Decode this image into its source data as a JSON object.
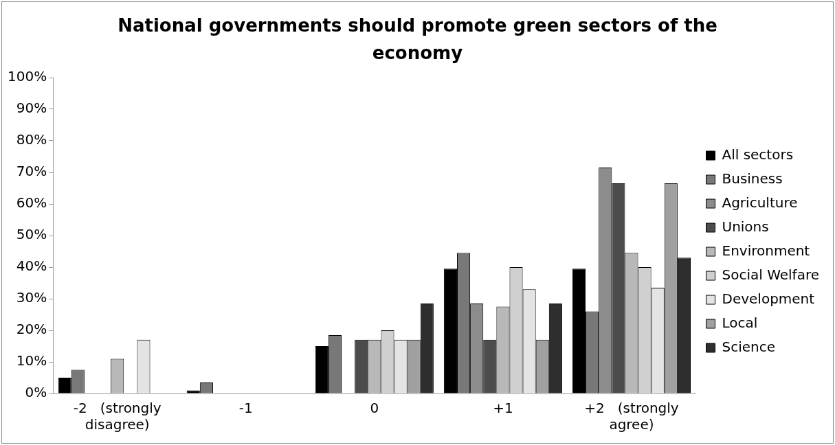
{
  "chart_data": {
    "type": "bar",
    "title": "National governments should promote green sectors of the economy",
    "categories": [
      "-2   (strongly disagree)",
      "-1",
      "0",
      "+1",
      "+2   (strongly agree)"
    ],
    "series": [
      {
        "name": "All sectors",
        "color": "#000000",
        "values": [
          5,
          1,
          15,
          39.5,
          39.5
        ]
      },
      {
        "name": "Business",
        "color": "#787878",
        "values": [
          7.5,
          3.5,
          18.5,
          44.5,
          26
        ]
      },
      {
        "name": "Agriculture",
        "color": "#8c8c8c",
        "values": [
          0,
          0,
          0,
          28.5,
          71.5
        ]
      },
      {
        "name": "Unions",
        "color": "#4c4c4c",
        "values": [
          0,
          0,
          17,
          17,
          66.5
        ]
      },
      {
        "name": "Environment",
        "color": "#b8b8b8",
        "values": [
          11,
          0,
          17,
          27.5,
          44.5
        ]
      },
      {
        "name": "Social Welfare",
        "color": "#d0d0d0",
        "values": [
          0,
          0,
          20,
          40,
          40
        ]
      },
      {
        "name": "Development",
        "color": "#e4e4e4",
        "values": [
          17,
          0,
          17,
          33,
          33.5
        ]
      },
      {
        "name": "Local",
        "color": "#a0a0a0",
        "values": [
          0,
          0,
          17,
          17,
          66.5
        ]
      },
      {
        "name": "Science",
        "color": "#2e2e2e",
        "values": [
          0,
          0,
          28.5,
          28.5,
          43
        ]
      }
    ],
    "ylim": [
      0,
      100
    ],
    "yticks": [
      {
        "value": 0,
        "label": "0%"
      },
      {
        "value": 10,
        "label": "10%"
      },
      {
        "value": 20,
        "label": "20%"
      },
      {
        "value": 30,
        "label": "30%"
      },
      {
        "value": 40,
        "label": "40%"
      },
      {
        "value": 50,
        "label": "50%"
      },
      {
        "value": 60,
        "label": "60%"
      },
      {
        "value": 70,
        "label": "70%"
      },
      {
        "value": 80,
        "label": "80%"
      },
      {
        "value": 90,
        "label": "90%"
      },
      {
        "value": 100,
        "label": "100%"
      }
    ],
    "grid": false,
    "legend": "right"
  }
}
